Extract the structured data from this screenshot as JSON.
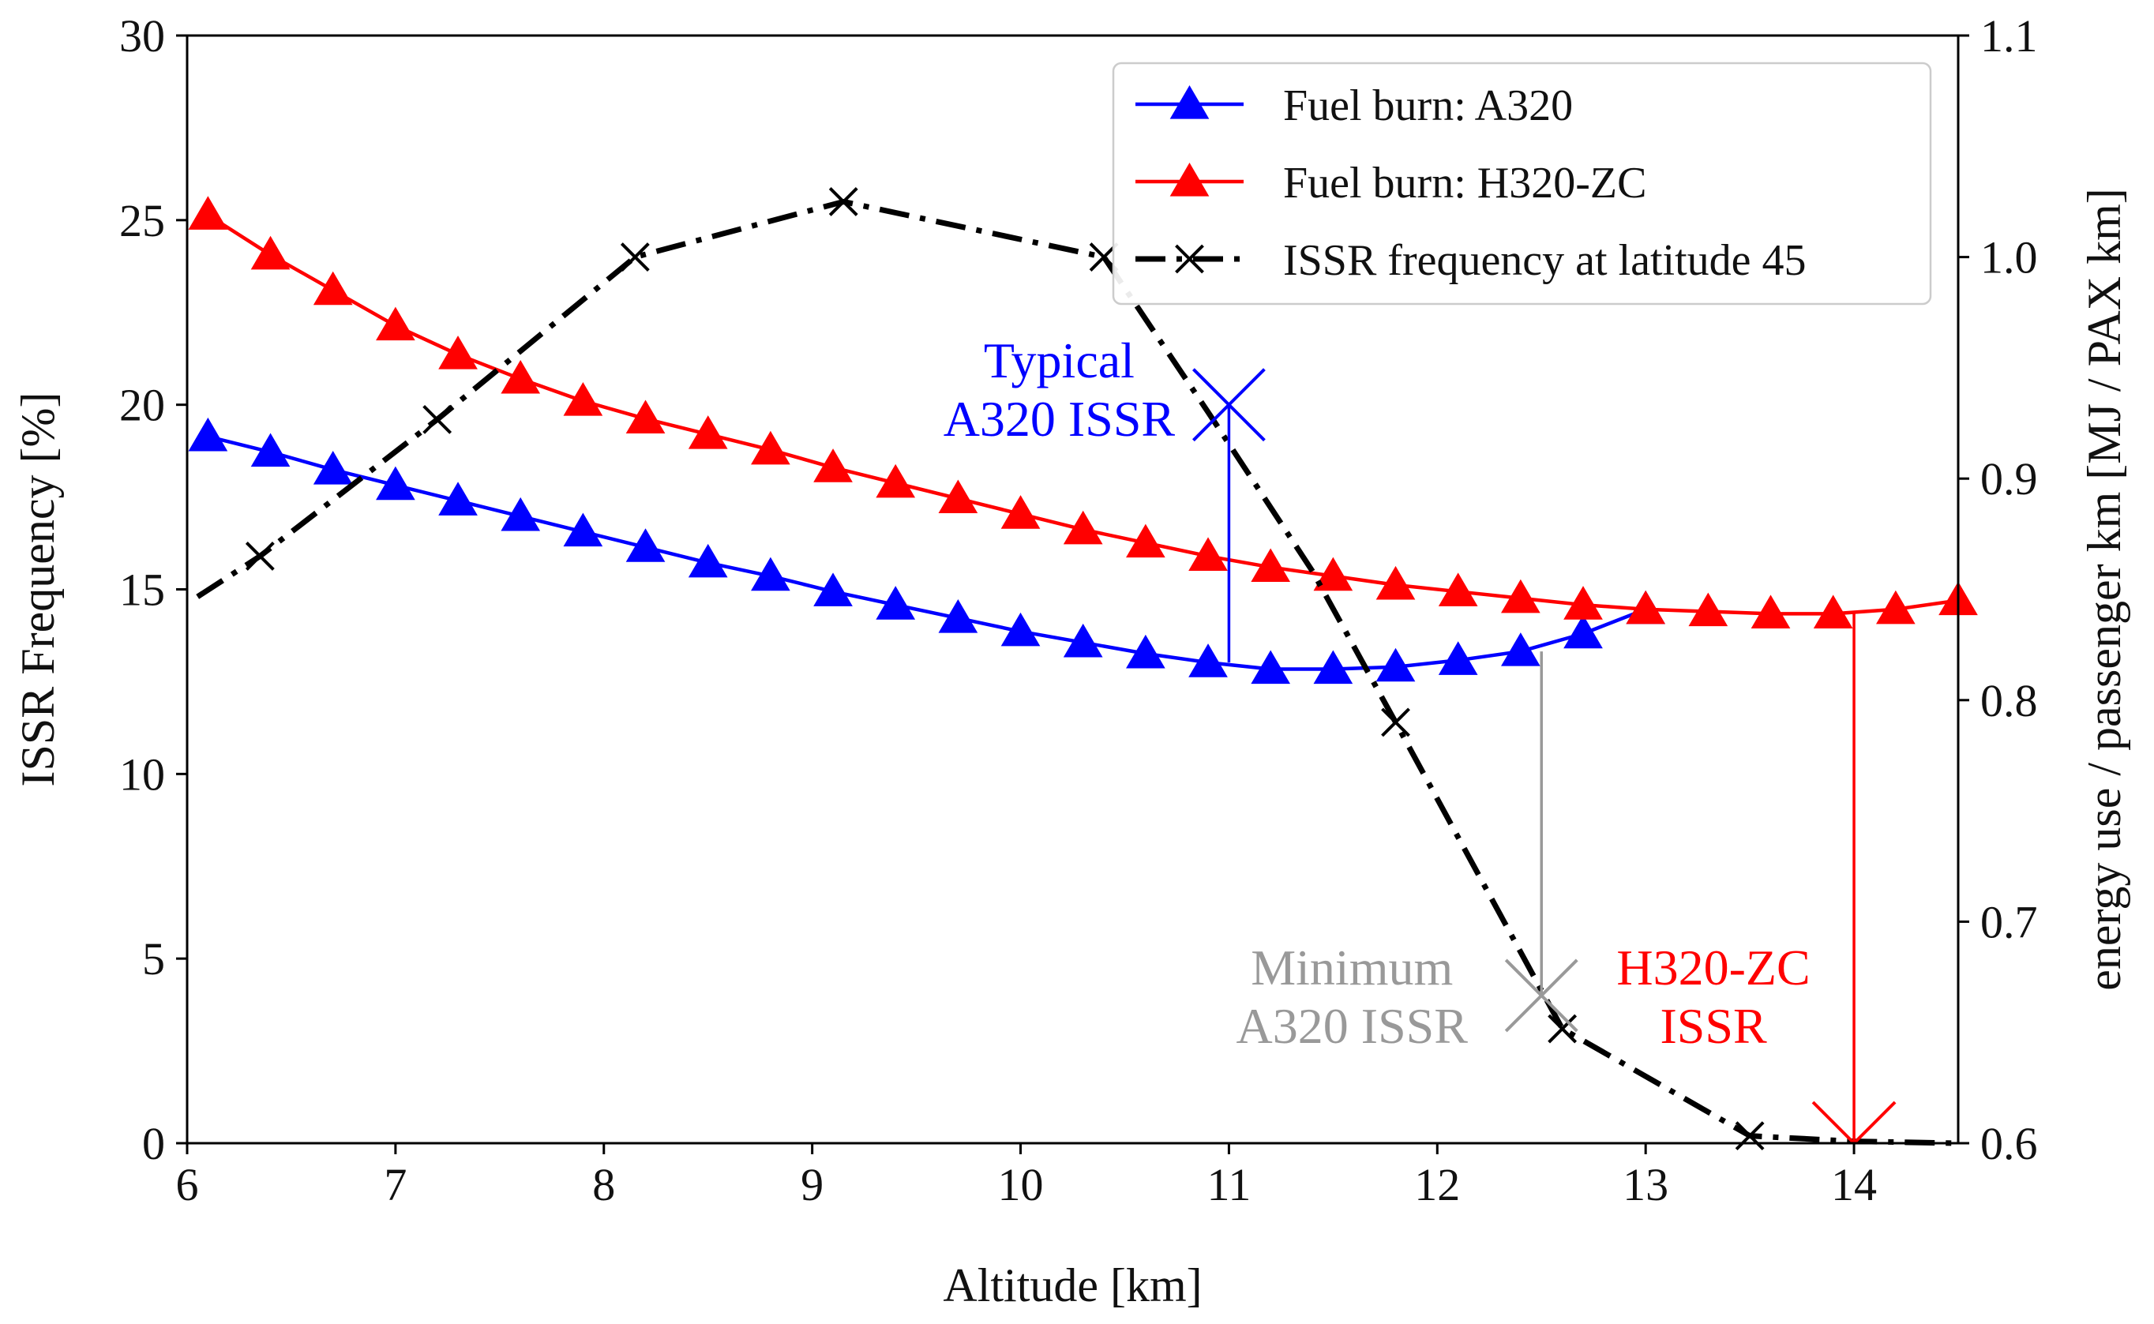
{
  "chart_data": {
    "type": "line",
    "x_axis": {
      "label": "Altitude [km]",
      "range": [
        6,
        14.5
      ],
      "ticks": [
        6,
        7,
        8,
        9,
        10,
        11,
        12,
        13,
        14
      ]
    },
    "y_left": {
      "label": "ISSR Frequency [%]",
      "range": [
        0,
        30
      ],
      "ticks": [
        0,
        5,
        10,
        15,
        20,
        25,
        30
      ]
    },
    "y_right": {
      "label": "energy use / passenger km [MJ / PAX km]",
      "range": [
        0.6,
        1.1
      ],
      "ticks": [
        "0.6",
        "0.7",
        "0.8",
        "0.9",
        "1.0",
        "1.1"
      ]
    },
    "grid": false,
    "legend_position": "top-right",
    "series": [
      {
        "name": "Fuel burn: A320",
        "color": "#0000ff",
        "marker": "triangle",
        "axis": "right",
        "x": [
          6.1,
          6.4,
          6.7,
          7.0,
          7.3,
          7.6,
          7.9,
          8.2,
          8.5,
          8.8,
          9.1,
          9.4,
          9.7,
          10.0,
          10.3,
          10.6,
          10.9,
          11.2,
          11.5,
          11.8,
          12.1,
          12.4,
          12.7,
          13.0
        ],
        "y": [
          0.919,
          0.912,
          0.904,
          0.897,
          0.89,
          0.883,
          0.876,
          0.869,
          0.862,
          0.856,
          0.849,
          0.843,
          0.837,
          0.831,
          0.826,
          0.821,
          0.817,
          0.814,
          0.814,
          0.815,
          0.818,
          0.822,
          0.83,
          0.841
        ]
      },
      {
        "name": "Fuel burn: H320-ZC",
        "color": "#ff0000",
        "marker": "triangle",
        "axis": "right",
        "x": [
          6.1,
          6.4,
          6.7,
          7.0,
          7.3,
          7.6,
          7.9,
          8.2,
          8.5,
          8.8,
          9.1,
          9.4,
          9.7,
          10.0,
          10.3,
          10.6,
          10.9,
          11.2,
          11.5,
          11.8,
          12.1,
          12.4,
          12.7,
          13.0,
          13.3,
          13.6,
          13.9,
          14.2,
          14.5
        ],
        "y": [
          1.019,
          1.001,
          0.985,
          0.969,
          0.956,
          0.945,
          0.935,
          0.927,
          0.92,
          0.913,
          0.905,
          0.898,
          0.891,
          0.884,
          0.877,
          0.871,
          0.865,
          0.86,
          0.856,
          0.852,
          0.849,
          0.846,
          0.843,
          0.841,
          0.84,
          0.839,
          0.839,
          0.841,
          0.845
        ]
      },
      {
        "name": "ISSR frequency at latitude 45",
        "color": "#000000",
        "marker": "x",
        "axis": "left",
        "dash": "dash-dot",
        "x": [
          6.05,
          6.35,
          7.2,
          8.15,
          9.15,
          10.4,
          10.9,
          11.4,
          11.8,
          12.6,
          13.5,
          14.0,
          14.5
        ],
        "y": [
          14.8,
          15.9,
          19.6,
          24.0,
          25.5,
          24.0,
          19.8,
          15.5,
          11.4,
          3.1,
          0.2,
          0.05,
          0.0
        ],
        "markers_at_index": [
          1,
          2,
          3,
          4,
          5,
          8,
          9,
          10
        ]
      }
    ],
    "annotations": [
      {
        "text": [
          "Typical",
          "A320 ISSR"
        ],
        "color": "#0000ff",
        "x": 11.0,
        "from_right": 0.817,
        "to_left": 20.0
      },
      {
        "text": [
          "Minimum",
          "A320 ISSR"
        ],
        "color": "#999999",
        "x": 12.5,
        "from_right": 0.822,
        "to_left": 4.0
      },
      {
        "text": [
          "H320-ZC",
          "ISSR"
        ],
        "color": "#ff0000",
        "x": 14.0,
        "from_right": 0.839,
        "to_left": 0.0
      }
    ]
  }
}
